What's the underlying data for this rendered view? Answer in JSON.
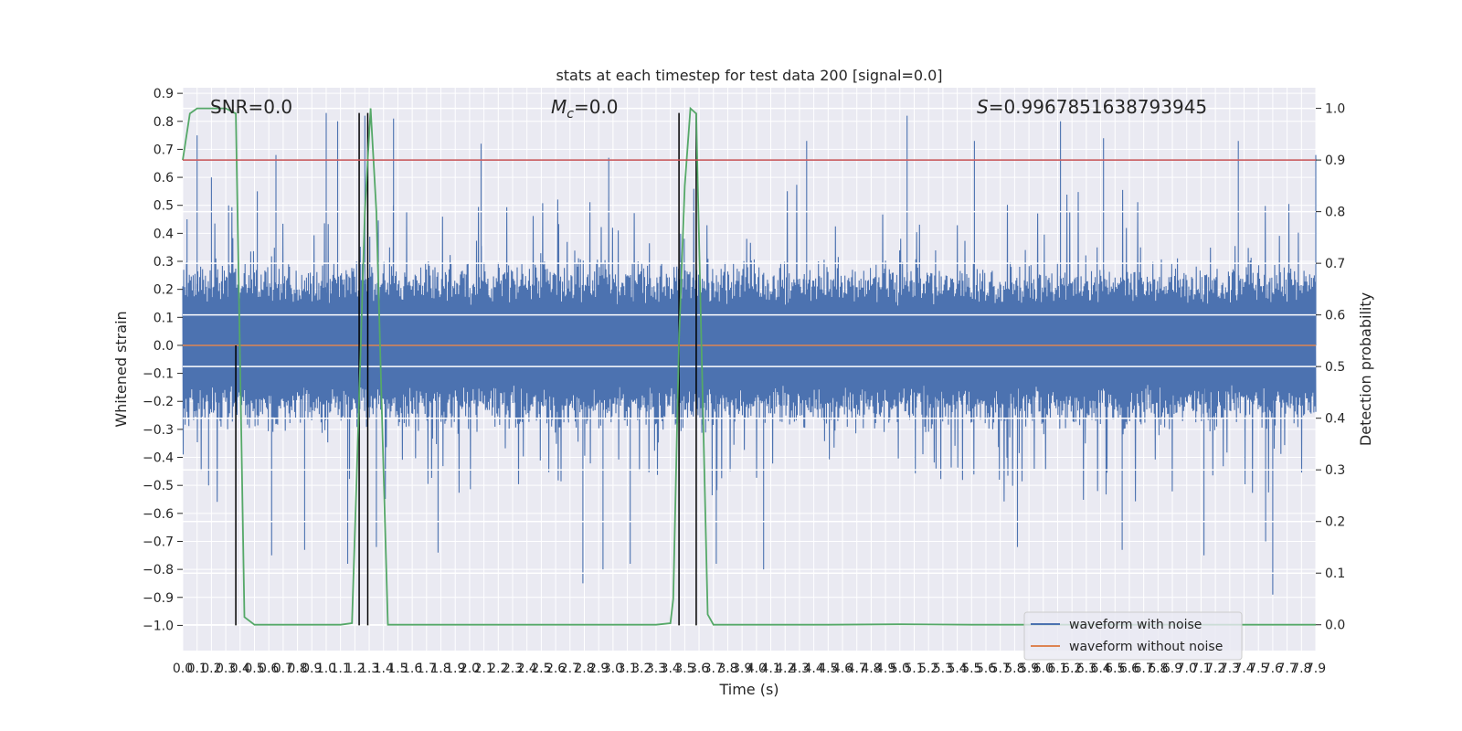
{
  "colors": {
    "background": "#ffffff",
    "plot_bg": "#eaeaf2",
    "grid": "#ffffff",
    "noisy": "#4c72b0",
    "clean": "#dd8452",
    "probability": "#55a868",
    "threshold": "#c44e52",
    "event_lines": "#000000"
  },
  "chart_data": {
    "type": "line",
    "title": "stats at each timestep for test data 200 [signal=0.0]",
    "xlabel": "Time (s)",
    "ylabel": "Whitened strain",
    "y2label": "Detection probability",
    "xlim": [
      0.0,
      7.9
    ],
    "ylim": [
      -1.09,
      0.92
    ],
    "y2lim": [
      -0.05,
      1.04
    ],
    "grid": true,
    "x_ticks": [
      "0.0",
      "0.1",
      "0.2",
      "0.3",
      "0.4",
      "0.5",
      "0.6",
      "0.7",
      "0.8",
      "0.9",
      "1.0",
      "1.1",
      "1.2",
      "1.3",
      "1.4",
      "1.5",
      "1.6",
      "1.7",
      "1.8",
      "1.9",
      "2.0",
      "2.1",
      "2.2",
      "2.3",
      "2.4",
      "2.5",
      "2.6",
      "2.7",
      "2.8",
      "2.9",
      "3.0",
      "3.1",
      "3.2",
      "3.3",
      "3.4",
      "3.5",
      "3.6",
      "3.7",
      "3.8",
      "3.9",
      "4.0",
      "4.1",
      "4.2",
      "4.3",
      "4.4",
      "4.5",
      "4.6",
      "4.7",
      "4.8",
      "4.9",
      "5.0",
      "5.1",
      "5.2",
      "5.3",
      "5.4",
      "5.5",
      "5.6",
      "5.7",
      "5.8",
      "5.9",
      "6.0",
      "6.1",
      "6.2",
      "6.3",
      "6.4",
      "6.5",
      "6.6",
      "6.7",
      "6.8",
      "6.9",
      "7.0",
      "7.1",
      "7.2",
      "7.3",
      "7.4",
      "7.5",
      "7.6",
      "7.7",
      "7.8",
      "7.9"
    ],
    "y_ticks": [
      "0.9",
      "0.8",
      "0.7",
      "0.6",
      "0.5",
      "0.4",
      "0.3",
      "0.2",
      "0.1",
      "0.0",
      "−0.1",
      "−0.2",
      "−0.3",
      "−0.4",
      "−0.5",
      "−0.6",
      "−0.7",
      "−0.8",
      "−0.9",
      "−1.0"
    ],
    "y2_ticks": [
      "1.0",
      "0.9",
      "0.8",
      "0.7",
      "0.6",
      "0.5",
      "0.4",
      "0.3",
      "0.2",
      "0.1",
      "0.0"
    ],
    "annotations": {
      "snr": "SNR=0.0",
      "mc_symbol": "M",
      "mc_subscript": "c",
      "mc_value": "=0.0",
      "s_symbol": "S",
      "s_value": "=0.9967851638793945"
    },
    "series": [
      {
        "name": "waveform with noise",
        "axis": "left",
        "note": "dense noisy strain, approx. ±0.3 core with spikes to about ±0.85",
        "spikes_up": [
          [
            0.03,
            0.45
          ],
          [
            0.1,
            0.75
          ],
          [
            0.2,
            0.6
          ],
          [
            0.32,
            0.5
          ],
          [
            0.52,
            0.55
          ],
          [
            0.65,
            0.68
          ],
          [
            1.0,
            0.83
          ],
          [
            1.08,
            0.8
          ],
          [
            1.27,
            0.82
          ],
          [
            1.47,
            0.81
          ],
          [
            2.08,
            0.72
          ],
          [
            2.97,
            0.67
          ],
          [
            4.35,
            0.73
          ],
          [
            5.05,
            0.82
          ],
          [
            5.52,
            0.73
          ],
          [
            6.12,
            0.8
          ],
          [
            6.42,
            0.74
          ],
          [
            7.36,
            0.73
          ],
          [
            7.9,
            0.68
          ]
        ],
        "spikes_down": [
          [
            0.18,
            -0.5
          ],
          [
            0.62,
            -0.75
          ],
          [
            0.85,
            -0.73
          ],
          [
            1.15,
            -0.78
          ],
          [
            1.35,
            -0.72
          ],
          [
            1.78,
            -0.74
          ],
          [
            2.79,
            -0.85
          ],
          [
            2.93,
            -0.8
          ],
          [
            3.12,
            -0.78
          ],
          [
            3.72,
            -0.78
          ],
          [
            4.05,
            -0.8
          ],
          [
            5.82,
            -0.72
          ],
          [
            6.55,
            -0.73
          ],
          [
            7.12,
            -0.75
          ],
          [
            7.55,
            -0.7
          ],
          [
            7.6,
            -0.89
          ]
        ]
      },
      {
        "name": "waveform without noise",
        "axis": "left",
        "x": [
          0.0,
          7.9
        ],
        "y": [
          0.0,
          0.0
        ]
      },
      {
        "name": "",
        "axis": "right",
        "x": [
          0.0,
          0.05,
          0.1,
          0.2,
          0.3,
          0.37,
          0.43,
          0.5,
          0.6,
          0.8,
          1.0,
          1.1,
          1.18,
          1.22,
          1.27,
          1.31,
          1.35,
          1.4,
          1.43,
          1.6,
          2.0,
          2.5,
          3.0,
          3.3,
          3.4,
          3.42,
          3.46,
          3.5,
          3.54,
          3.58,
          3.62,
          3.66,
          3.7,
          3.74,
          3.8,
          4.0,
          4.5,
          5.0,
          5.5,
          6.0,
          6.5,
          7.0,
          7.5,
          7.9
        ],
        "y": [
          0.9,
          0.99,
          1.0,
          1.0,
          1.0,
          0.99,
          0.015,
          0.0,
          0.0,
          0.0,
          0.0,
          0.0,
          0.003,
          0.35,
          0.8,
          1.0,
          0.8,
          0.3,
          0.0,
          0.0,
          0.0,
          0.0,
          0.0,
          0.0,
          0.003,
          0.05,
          0.55,
          0.85,
          1.0,
          0.99,
          0.5,
          0.02,
          0.0,
          0.0,
          0.0,
          0.0,
          0.0,
          0.001,
          0.0,
          0.0,
          0.0,
          0.0,
          0.0,
          0.0
        ]
      },
      {
        "name": "",
        "axis": "right",
        "x": [
          0.0,
          7.9
        ],
        "y": [
          0.9,
          0.9
        ]
      }
    ],
    "vlines": [
      [
        0.37,
        -1.0,
        0.0
      ],
      [
        1.23,
        -1.0,
        0.83
      ],
      [
        1.29,
        -1.0,
        0.83
      ],
      [
        3.46,
        -1.0,
        0.83
      ],
      [
        3.58,
        -1.0,
        0.83
      ]
    ],
    "legend": {
      "placement": "lower right",
      "entries": [
        "waveform with noise",
        "waveform without noise"
      ]
    }
  }
}
